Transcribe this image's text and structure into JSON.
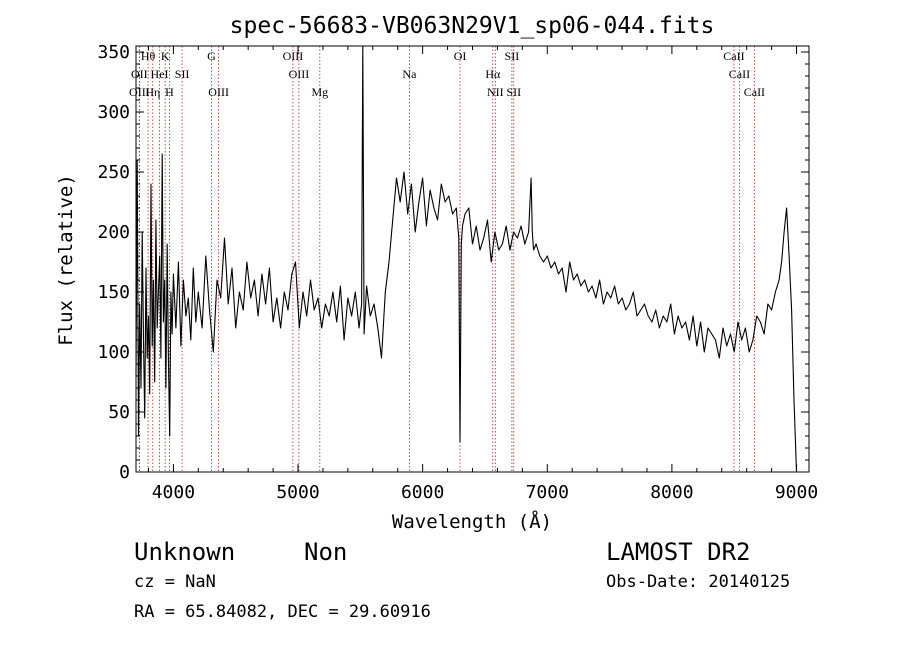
{
  "chart_data": {
    "type": "line",
    "title": "spec-56683-VB063N29V1_sp06-044.fits",
    "xlabel": "Wavelength (Å)",
    "ylabel": "Flux (relative)",
    "xlim": [
      3700,
      9100
    ],
    "ylim": [
      0,
      355
    ],
    "xticks": [
      4000,
      5000,
      6000,
      7000,
      8000,
      9000
    ],
    "yticks": [
      0,
      50,
      100,
      150,
      200,
      250,
      300,
      350
    ],
    "x": [
      3700,
      3710,
      3720,
      3730,
      3740,
      3750,
      3760,
      3770,
      3780,
      3790,
      3800,
      3810,
      3820,
      3830,
      3840,
      3850,
      3860,
      3870,
      3880,
      3890,
      3900,
      3910,
      3920,
      3930,
      3940,
      3950,
      3960,
      3970,
      3980,
      3990,
      4000,
      4020,
      4040,
      4060,
      4080,
      4100,
      4120,
      4140,
      4160,
      4180,
      4200,
      4230,
      4260,
      4290,
      4320,
      4350,
      4380,
      4410,
      4440,
      4470,
      4500,
      4530,
      4560,
      4590,
      4620,
      4650,
      4680,
      4710,
      4740,
      4770,
      4800,
      4830,
      4860,
      4890,
      4920,
      4950,
      4980,
      5010,
      5040,
      5070,
      5100,
      5130,
      5160,
      5190,
      5220,
      5250,
      5280,
      5310,
      5340,
      5370,
      5400,
      5430,
      5460,
      5490,
      5510,
      5520,
      5530,
      5550,
      5580,
      5610,
      5640,
      5670,
      5700,
      5730,
      5760,
      5790,
      5820,
      5850,
      5880,
      5910,
      5940,
      5970,
      6000,
      6030,
      6060,
      6090,
      6120,
      6150,
      6180,
      6210,
      6240,
      6270,
      6290,
      6300,
      6310,
      6320,
      6340,
      6370,
      6400,
      6430,
      6460,
      6490,
      6520,
      6550,
      6580,
      6610,
      6640,
      6670,
      6700,
      6730,
      6760,
      6790,
      6820,
      6850,
      6870,
      6880,
      6890,
      6910,
      6940,
      6970,
      7000,
      7030,
      7060,
      7090,
      7120,
      7150,
      7180,
      7210,
      7240,
      7270,
      7300,
      7330,
      7360,
      7390,
      7420,
      7450,
      7480,
      7510,
      7540,
      7570,
      7600,
      7630,
      7660,
      7690,
      7720,
      7750,
      7780,
      7810,
      7840,
      7870,
      7900,
      7930,
      7960,
      7990,
      8020,
      8050,
      8080,
      8110,
      8140,
      8170,
      8200,
      8230,
      8260,
      8290,
      8320,
      8350,
      8380,
      8410,
      8440,
      8470,
      8500,
      8530,
      8560,
      8590,
      8620,
      8650,
      8680,
      8710,
      8740,
      8770,
      8800,
      8830,
      8860,
      8880,
      8900,
      8920,
      8940,
      8960,
      8980,
      9000
    ],
    "y": [
      80,
      260,
      30,
      140,
      70,
      200,
      110,
      45,
      170,
      95,
      130,
      65,
      240,
      105,
      160,
      75,
      210,
      120,
      150,
      180,
      95,
      265,
      125,
      160,
      70,
      190,
      95,
      30,
      150,
      115,
      165,
      120,
      175,
      105,
      160,
      130,
      145,
      110,
      170,
      125,
      150,
      120,
      180,
      135,
      100,
      160,
      145,
      195,
      140,
      170,
      120,
      150,
      135,
      175,
      145,
      160,
      130,
      165,
      140,
      170,
      125,
      145,
      120,
      150,
      135,
      165,
      175,
      120,
      150,
      130,
      160,
      135,
      145,
      120,
      140,
      130,
      150,
      125,
      155,
      110,
      145,
      130,
      150,
      120,
      140,
      355,
      115,
      155,
      130,
      140,
      120,
      95,
      150,
      175,
      210,
      245,
      225,
      250,
      215,
      240,
      200,
      225,
      245,
      205,
      235,
      220,
      210,
      240,
      225,
      230,
      215,
      220,
      195,
      25,
      190,
      205,
      215,
      220,
      190,
      205,
      185,
      195,
      210,
      175,
      200,
      185,
      190,
      205,
      185,
      200,
      195,
      205,
      190,
      200,
      245,
      200,
      185,
      190,
      180,
      175,
      180,
      170,
      175,
      165,
      170,
      150,
      175,
      160,
      165,
      155,
      160,
      150,
      155,
      145,
      160,
      140,
      150,
      145,
      155,
      140,
      145,
      135,
      140,
      150,
      130,
      135,
      140,
      130,
      125,
      135,
      120,
      130,
      125,
      140,
      115,
      130,
      120,
      125,
      110,
      130,
      105,
      125,
      100,
      120,
      115,
      110,
      95,
      120,
      105,
      115,
      100,
      125,
      110,
      120,
      100,
      110,
      130,
      125,
      115,
      140,
      135,
      150,
      160,
      175,
      200,
      220,
      180,
      135,
      60,
      0
    ]
  },
  "lines": [
    {
      "label": "Hθ",
      "wave": 3797,
      "row": 0
    },
    {
      "label": "OII",
      "wave": 3727,
      "row": 1
    },
    {
      "label": "OIII",
      "wave": 3727,
      "row": 2
    },
    {
      "label": "Hη",
      "wave": 3835,
      "row": 2
    },
    {
      "label": "K",
      "wave": 3934,
      "row": 0
    },
    {
      "label": "HeI",
      "wave": 3889,
      "row": 1
    },
    {
      "label": "H",
      "wave": 3968,
      "row": 2
    },
    {
      "label": "SII",
      "wave": 4070,
      "row": 1
    },
    {
      "label": "G",
      "wave": 4305,
      "row": 0
    },
    {
      "label": "OIII",
      "wave": 4363,
      "row": 2
    },
    {
      "label": "OIII",
      "wave": 4959,
      "row": 0
    },
    {
      "label": "OIII",
      "wave": 5007,
      "row": 1
    },
    {
      "label": "Mg",
      "wave": 5175,
      "row": 2
    },
    {
      "label": "Na",
      "wave": 5894,
      "row": 1
    },
    {
      "label": "OI",
      "wave": 6300,
      "row": 0
    },
    {
      "label": "Hα",
      "wave": 6563,
      "row": 1
    },
    {
      "label": "NII",
      "wave": 6583,
      "row": 2
    },
    {
      "label": "SII",
      "wave": 6716,
      "row": 0
    },
    {
      "label": "SII",
      "wave": 6731,
      "row": 2
    },
    {
      "label": "CaII",
      "wave": 8498,
      "row": 0
    },
    {
      "label": "CaII",
      "wave": 8542,
      "row": 1
    },
    {
      "label": "CaII",
      "wave": 8662,
      "row": 2
    }
  ],
  "info": {
    "obj_class": "Unknown",
    "obj_subclass": "Non",
    "survey": "LAMOST DR2",
    "cz": "cz = NaN",
    "obs_date": "Obs-Date: 20140125",
    "radec": "RA =  65.84082, DEC =  29.60916"
  }
}
